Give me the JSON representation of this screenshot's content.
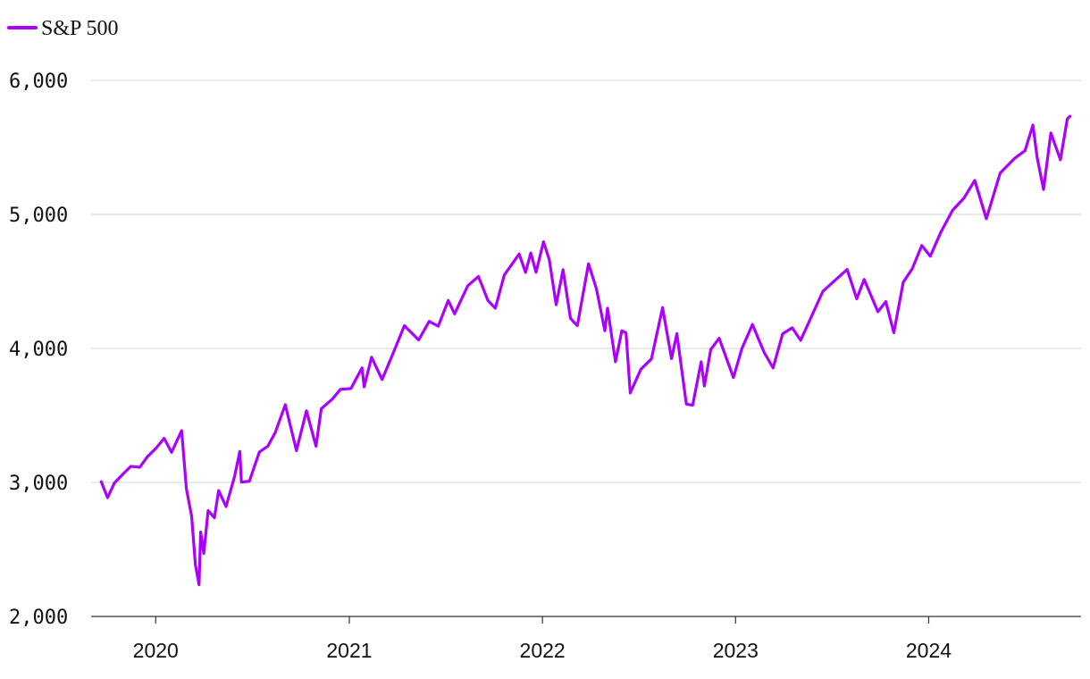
{
  "chart_data": {
    "type": "line",
    "title": "",
    "xlabel": "",
    "ylabel": "",
    "ylim": [
      2000,
      6000
    ],
    "xlim": [
      "2019-09-01",
      "2024-10-15"
    ],
    "grid": "horizontal",
    "legend_position": "top-left",
    "y_ticks": [
      {
        "value": 2000,
        "label": "2,000"
      },
      {
        "value": 3000,
        "label": "3,000"
      },
      {
        "value": 4000,
        "label": "4,000"
      },
      {
        "value": 5000,
        "label": "5,000"
      },
      {
        "value": 6000,
        "label": "6,000"
      }
    ],
    "x_ticks": [
      {
        "value": "2020-01-01",
        "label": "2020"
      },
      {
        "value": "2021-01-01",
        "label": "2021"
      },
      {
        "value": "2022-01-01",
        "label": "2022"
      },
      {
        "value": "2023-01-01",
        "label": "2023"
      },
      {
        "value": "2024-01-01",
        "label": "2024"
      }
    ],
    "series": [
      {
        "name": "S&P 500",
        "color": "#AA00FF",
        "points": [
          [
            "2019-09-20",
            3006
          ],
          [
            "2019-10-02",
            2887
          ],
          [
            "2019-10-15",
            2996
          ],
          [
            "2019-11-01",
            3066
          ],
          [
            "2019-11-15",
            3120
          ],
          [
            "2019-12-02",
            3113
          ],
          [
            "2019-12-16",
            3191
          ],
          [
            "2020-01-02",
            3257
          ],
          [
            "2020-01-17",
            3329
          ],
          [
            "2020-01-31",
            3225
          ],
          [
            "2020-02-19",
            3386
          ],
          [
            "2020-02-28",
            2954
          ],
          [
            "2020-03-09",
            2746
          ],
          [
            "2020-03-16",
            2386
          ],
          [
            "2020-03-23",
            2237
          ],
          [
            "2020-03-26",
            2630
          ],
          [
            "2020-04-01",
            2470
          ],
          [
            "2020-04-09",
            2789
          ],
          [
            "2020-04-21",
            2737
          ],
          [
            "2020-04-29",
            2939
          ],
          [
            "2020-05-13",
            2820
          ],
          [
            "2020-05-29",
            3044
          ],
          [
            "2020-06-08",
            3232
          ],
          [
            "2020-06-11",
            3002
          ],
          [
            "2020-06-26",
            3009
          ],
          [
            "2020-07-15",
            3227
          ],
          [
            "2020-07-31",
            3271
          ],
          [
            "2020-08-14",
            3373
          ],
          [
            "2020-09-02",
            3580
          ],
          [
            "2020-09-23",
            3237
          ],
          [
            "2020-10-12",
            3535
          ],
          [
            "2020-10-30",
            3270
          ],
          [
            "2020-11-09",
            3550
          ],
          [
            "2020-11-30",
            3622
          ],
          [
            "2020-12-15",
            3694
          ],
          [
            "2021-01-04",
            3701
          ],
          [
            "2021-01-25",
            3855
          ],
          [
            "2021-01-29",
            3714
          ],
          [
            "2021-02-12",
            3934
          ],
          [
            "2021-03-04",
            3768
          ],
          [
            "2021-03-26",
            3975
          ],
          [
            "2021-04-15",
            4170
          ],
          [
            "2021-05-12",
            4063
          ],
          [
            "2021-06-01",
            4202
          ],
          [
            "2021-06-18",
            4166
          ],
          [
            "2021-07-07",
            4358
          ],
          [
            "2021-07-19",
            4258
          ],
          [
            "2021-08-13",
            4468
          ],
          [
            "2021-09-02",
            4537
          ],
          [
            "2021-09-20",
            4358
          ],
          [
            "2021-10-04",
            4300
          ],
          [
            "2021-10-21",
            4549
          ],
          [
            "2021-11-18",
            4705
          ],
          [
            "2021-11-30",
            4567
          ],
          [
            "2021-12-10",
            4712
          ],
          [
            "2021-12-20",
            4568
          ],
          [
            "2022-01-03",
            4796
          ],
          [
            "2022-01-14",
            4663
          ],
          [
            "2022-01-27",
            4326
          ],
          [
            "2022-02-09",
            4587
          ],
          [
            "2022-02-23",
            4225
          ],
          [
            "2022-03-08",
            4170
          ],
          [
            "2022-03-29",
            4632
          ],
          [
            "2022-04-13",
            4446
          ],
          [
            "2022-04-29",
            4132
          ],
          [
            "2022-05-04",
            4300
          ],
          [
            "2022-05-19",
            3901
          ],
          [
            "2022-05-31",
            4132
          ],
          [
            "2022-06-08",
            4116
          ],
          [
            "2022-06-16",
            3667
          ],
          [
            "2022-07-06",
            3845
          ],
          [
            "2022-07-26",
            3921
          ],
          [
            "2022-08-16",
            4305
          ],
          [
            "2022-09-02",
            3924
          ],
          [
            "2022-09-12",
            4110
          ],
          [
            "2022-09-30",
            3585
          ],
          [
            "2022-10-12",
            3577
          ],
          [
            "2022-10-28",
            3901
          ],
          [
            "2022-11-03",
            3720
          ],
          [
            "2022-11-15",
            3991
          ],
          [
            "2022-12-01",
            4076
          ],
          [
            "2022-12-28",
            3783
          ],
          [
            "2023-01-13",
            3999
          ],
          [
            "2023-02-02",
            4179
          ],
          [
            "2023-02-24",
            3970
          ],
          [
            "2023-03-13",
            3855
          ],
          [
            "2023-03-31",
            4109
          ],
          [
            "2023-04-18",
            4154
          ],
          [
            "2023-05-04",
            4061
          ],
          [
            "2023-05-19",
            4191
          ],
          [
            "2023-06-15",
            4426
          ],
          [
            "2023-07-31",
            4589
          ],
          [
            "2023-08-18",
            4370
          ],
          [
            "2023-09-01",
            4515
          ],
          [
            "2023-09-27",
            4274
          ],
          [
            "2023-10-12",
            4349
          ],
          [
            "2023-10-27",
            4117
          ],
          [
            "2023-11-14",
            4495
          ],
          [
            "2023-12-01",
            4595
          ],
          [
            "2023-12-19",
            4768
          ],
          [
            "2024-01-04",
            4688
          ],
          [
            "2024-01-24",
            4868
          ],
          [
            "2024-02-15",
            5030
          ],
          [
            "2024-03-08",
            5123
          ],
          [
            "2024-03-28",
            5254
          ],
          [
            "2024-04-19",
            4967
          ],
          [
            "2024-05-15",
            5308
          ],
          [
            "2024-06-12",
            5421
          ],
          [
            "2024-07-01",
            5475
          ],
          [
            "2024-07-16",
            5667
          ],
          [
            "2024-07-24",
            5427
          ],
          [
            "2024-08-05",
            5186
          ],
          [
            "2024-08-19",
            5608
          ],
          [
            "2024-09-06",
            5408
          ],
          [
            "2024-09-19",
            5713
          ],
          [
            "2024-09-24",
            5732
          ]
        ]
      }
    ]
  }
}
